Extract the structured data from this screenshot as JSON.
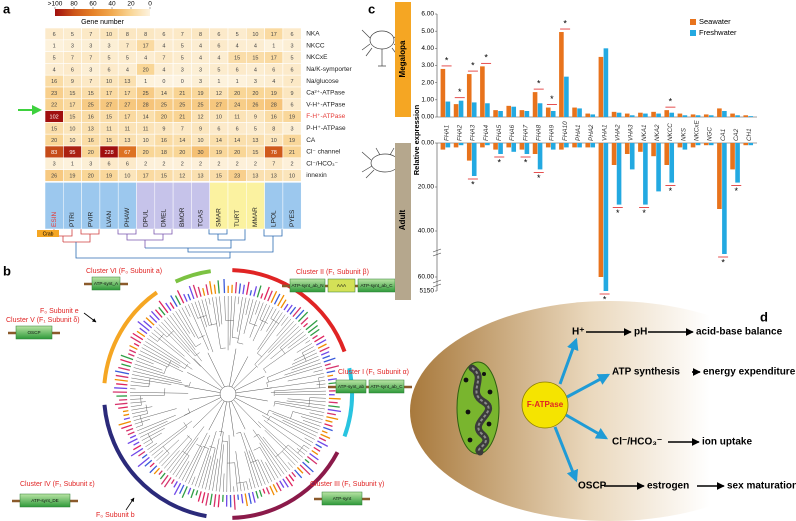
{
  "panel_labels": [
    "a",
    "b",
    "c",
    "d"
  ],
  "heatmap": {
    "legend": {
      "title": "Gene number",
      "ticks": [
        {
          "value": 100,
          "label": ">100"
        },
        80,
        60,
        40,
        20,
        0
      ]
    },
    "columns": [
      "ESIN",
      "PTRI",
      "PVIR",
      "LVAN",
      "PHAW",
      "DPUL",
      "DMEL",
      "BMOR",
      "TCAS",
      "SMAR",
      "TURT",
      "MMAR",
      "LPOL",
      "PYES"
    ],
    "group_label": "Crab",
    "rows": [
      {
        "label": "NKA",
        "values": [
          6,
          5,
          7,
          10,
          8,
          8,
          6,
          7,
          8,
          6,
          5,
          10,
          17,
          6
        ]
      },
      {
        "label": "NKCC",
        "values": [
          1,
          3,
          3,
          3,
          7,
          17,
          4,
          5,
          4,
          6,
          4,
          4,
          1,
          3
        ]
      },
      {
        "label": "NKCxE",
        "values": [
          5,
          7,
          7,
          5,
          5,
          4,
          7,
          5,
          4,
          4,
          15,
          15,
          17,
          5
        ]
      },
      {
        "label": "Na/K-symporter",
        "values": [
          4,
          6,
          3,
          6,
          4,
          20,
          4,
          3,
          3,
          5,
          6,
          4,
          6,
          6
        ]
      },
      {
        "label": "Na/glucose",
        "values": [
          16,
          9,
          7,
          10,
          13,
          1,
          0,
          0,
          3,
          1,
          1,
          3,
          4,
          7
        ]
      },
      {
        "label": "Ca²⁺-ATPase",
        "values": [
          23,
          15,
          15,
          17,
          17,
          25,
          14,
          21,
          19,
          12,
          20,
          20,
          19,
          9
        ]
      },
      {
        "label": "V-H⁺-ATPase",
        "values": [
          22,
          17,
          25,
          27,
          27,
          28,
          25,
          25,
          25,
          27,
          24,
          26,
          28,
          6
        ]
      },
      {
        "label": "F-H⁺-ATPase",
        "color": "#e53935",
        "values": [
          102,
          15,
          16,
          15,
          17,
          14,
          20,
          21,
          12,
          10,
          11,
          9,
          16,
          19
        ]
      },
      {
        "label": "P-H⁺-ATPase",
        "values": [
          15,
          10,
          13,
          11,
          11,
          11,
          9,
          7,
          9,
          6,
          6,
          5,
          8,
          3
        ]
      },
      {
        "label": "CA",
        "values": [
          20,
          10,
          16,
          15,
          13,
          10,
          16,
          14,
          10,
          14,
          14,
          13,
          10,
          19
        ]
      },
      {
        "label": "Cl⁻ channel",
        "values": [
          83,
          95,
          20,
          228,
          67,
          20,
          18,
          20,
          30,
          19,
          20,
          15,
          78,
          21
        ]
      },
      {
        "label": "Cl⁻/HCO₃⁻",
        "values": [
          3,
          1,
          3,
          6,
          6,
          2,
          2,
          2,
          2,
          2,
          2,
          2,
          7,
          2
        ]
      },
      {
        "label": "innexin",
        "values": [
          26,
          19,
          20,
          19,
          10,
          17,
          15,
          12,
          13,
          15,
          23,
          13,
          13,
          10
        ]
      }
    ]
  },
  "tree": {
    "clusters": [
      {
        "label": "Cluster VI (F₀ Subunit a)",
        "domains": [
          "ATP-synt_A"
        ]
      },
      {
        "label": "Cluster V (F₁ Subunit δ)",
        "domains": [
          "OSCP"
        ]
      },
      {
        "label": "Cluster II (F₁ Subunit β)",
        "domains": [
          "ATP-synt_ab_N",
          "AAA",
          "ATP-synt_ab_C"
        ]
      },
      {
        "label": "Cluster I (F₁ Subunit α)",
        "domains": [
          "ATP-synt_ab",
          "ATP-synt_ab_C"
        ]
      },
      {
        "label": "Cluster III (F₁ Subunit γ)",
        "domains": [
          "ATP-synt"
        ]
      },
      {
        "label": "Cluster IV (F₁ Subunit ε)",
        "domains": [
          "ATP-synt_DE"
        ]
      }
    ],
    "subunits": [
      "F₀ Subunit e",
      "F₀ Subunit b"
    ]
  },
  "chart_data": [
    {
      "type": "bar",
      "stage": "Megalopa",
      "ylabel": "Relative expression",
      "categories": [
        "FHA1",
        "FHA2",
        "FHA3",
        "FHA4",
        "FHA5",
        "FHA6",
        "FHA7",
        "FHA8",
        "FHA9",
        "FHA10",
        "PHA1",
        "PHA2",
        "VHA1",
        "VHA2",
        "VHA3",
        "NKA1",
        "NKA2",
        "NKCC",
        "NKS",
        "NKCxE",
        "NGC",
        "CA1",
        "CA2",
        "CH1"
      ],
      "series": [
        {
          "name": "Seawater",
          "color": "#e8731c",
          "values": [
            2.8,
            0.75,
            2.5,
            2.95,
            0.4,
            0.65,
            0.4,
            1.45,
            0.55,
            4.95,
            0.55,
            0.2,
            3.5,
            0.3,
            0.2,
            0.25,
            0.3,
            0.4,
            0.2,
            0.15,
            0.15,
            0.5,
            0.2,
            0.1
          ]
        },
        {
          "name": "Freshwater",
          "color": "#23a9e1",
          "values": [
            0.9,
            0.95,
            0.85,
            0.8,
            0.35,
            0.6,
            0.35,
            0.8,
            0.35,
            2.35,
            0.5,
            0.15,
            4.0,
            0.25,
            0.1,
            0.2,
            0.2,
            0.25,
            0.1,
            0.1,
            0.1,
            0.35,
            0.1,
            0.05
          ]
        }
      ],
      "ylim": [
        0,
        6
      ],
      "yticks": [
        {
          "value": 0,
          "label": "0.00"
        },
        {
          "value": 1,
          "label": "1.00"
        },
        {
          "value": 2,
          "label": "2.00"
        },
        {
          "value": 3,
          "label": "3.00"
        },
        {
          "value": 4,
          "label": "4.00"
        },
        {
          "value": 5,
          "label": "5.00"
        },
        {
          "value": 6,
          "label": "6.00"
        }
      ],
      "annotations": [
        {
          "text": "*",
          "category": "FHA1"
        },
        {
          "text": "*",
          "category": "FHA2"
        },
        {
          "text": "*",
          "category": "FHA3"
        },
        {
          "text": "*",
          "category": "FHA4"
        },
        {
          "text": "*",
          "category": "FHA8"
        },
        {
          "text": "*",
          "category": "FHA9"
        },
        {
          "text": "*",
          "category": "FHA10"
        },
        {
          "text": "*",
          "category": "NKCC"
        }
      ]
    },
    {
      "type": "bar",
      "stage": "Adult",
      "inverted": true,
      "series": [
        {
          "color": "#e8731c",
          "values": [
            3,
            2,
            8,
            2,
            3,
            2,
            3,
            5,
            2,
            3,
            2,
            2,
            60,
            10,
            5,
            4,
            6,
            10,
            2,
            2,
            1,
            30,
            12,
            1
          ]
        },
        {
          "color": "#23a9e1",
          "values": [
            2,
            1,
            15,
            1,
            5,
            4,
            5,
            12,
            3,
            2,
            2,
            2,
            5150,
            28,
            12,
            28,
            22,
            18,
            3,
            1,
            1,
            50,
            18,
            1
          ]
        }
      ],
      "ylim": [
        0,
        5150
      ],
      "yticks": [
        {
          "value": 0,
          "label": "0.00"
        },
        {
          "value": 20,
          "label": "20.00"
        },
        {
          "value": 40,
          "label": "40.00"
        },
        {
          "value": 60,
          "label": "60.00"
        },
        5150
      ],
      "annotations": [
        {
          "text": "*",
          "category": "FHA3"
        },
        {
          "text": "*",
          "category": "FHA5"
        },
        {
          "text": "*",
          "category": "FHA7"
        },
        {
          "text": "*",
          "category": "FHA8"
        },
        {
          "text": "*",
          "category": "VHA1"
        },
        {
          "text": "*",
          "category": "VHA2"
        },
        {
          "text": "*",
          "category": "NKA1"
        },
        {
          "text": "*",
          "category": "NKCC"
        },
        {
          "text": "*",
          "category": "CA1"
        },
        {
          "text": "*",
          "category": "CA2"
        }
      ]
    }
  ],
  "diagram": {
    "center": "F-ATPase",
    "pathways": [
      {
        "source": "H⁺",
        "steps": [
          "pH",
          "acid-base balance"
        ]
      },
      {
        "source": "ATP synthesis",
        "steps": [
          "energy expenditure"
        ]
      },
      {
        "source": "Cl⁻/HCO₃⁻",
        "steps": [
          "ion uptake"
        ]
      },
      {
        "source": "OSCP",
        "steps": [
          "estrogen",
          "sex maturation"
        ]
      }
    ]
  }
}
